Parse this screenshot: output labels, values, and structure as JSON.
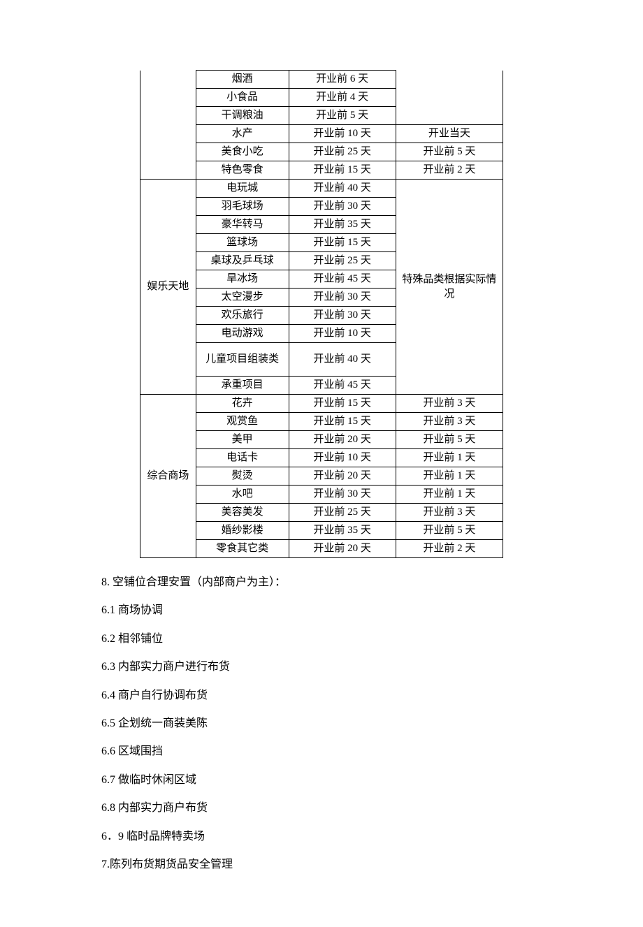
{
  "table": {
    "groups": [
      {
        "label": "",
        "openTop": true,
        "rows": [
          {
            "c2": "烟酒",
            "c3": "开业前 6 天",
            "c4": ""
          },
          {
            "c2": "小食品",
            "c3": "开业前 4 天",
            "c4": ""
          },
          {
            "c2": "干调粮油",
            "c3": "开业前 5 天",
            "c4": ""
          },
          {
            "c2": "水产",
            "c3": "开业前 10 天",
            "c4": "开业当天"
          },
          {
            "c2": "美食小吃",
            "c3": "开业前 25 天",
            "c4": "开业前 5 天"
          },
          {
            "c2": "特色零食",
            "c3": "开业前 15 天",
            "c4": "开业前 2 天"
          }
        ],
        "c4Span": {
          "start": 0,
          "len": 3,
          "text": "",
          "openTop": true
        }
      },
      {
        "label": "娱乐天地",
        "rows": [
          {
            "c2": "电玩城",
            "c3": "开业前 40 天"
          },
          {
            "c2": "羽毛球场",
            "c3": "开业前 30 天"
          },
          {
            "c2": "豪华转马",
            "c3": "开业前 35 天"
          },
          {
            "c2": "篮球场",
            "c3": "开业前 15 天"
          },
          {
            "c2": "桌球及乒乓球",
            "c3": "开业前 25 天"
          },
          {
            "c2": "旱冰场",
            "c3": "开业前 45 天"
          },
          {
            "c2": "太空漫步",
            "c3": "开业前 30 天"
          },
          {
            "c2": "欢乐旅行",
            "c3": "开业前 30 天"
          },
          {
            "c2": "电动游戏",
            "c3": "开业前 10 天"
          },
          {
            "c2": "儿童项目组装类",
            "c3": "开业前 40 天",
            "tall": true
          },
          {
            "c2": "承重项目",
            "c3": "开业前 45 天"
          }
        ],
        "c4Span": {
          "start": 0,
          "len": 11,
          "text": "特殊品类根据实际情况"
        }
      },
      {
        "label": "综合商场",
        "rows": [
          {
            "c2": "花卉",
            "c3": "开业前 15 天",
            "c4": "开业前 3 天"
          },
          {
            "c2": "观赏鱼",
            "c3": "开业前 15 天",
            "c4": "开业前 3 天"
          },
          {
            "c2": "美甲",
            "c3": "开业前 20 天",
            "c4": "开业前 5 天"
          },
          {
            "c2": "电话卡",
            "c3": "开业前 10 天",
            "c4": "开业前 1 天"
          },
          {
            "c2": "熨烫",
            "c3": "开业前 20 天",
            "c4": "开业前 1 天"
          },
          {
            "c2": "水吧",
            "c3": "开业前 30 天",
            "c4": "开业前 1 天"
          },
          {
            "c2": "美容美发",
            "c3": "开业前 25 天",
            "c4": "开业前 3 天"
          },
          {
            "c2": "婚纱影楼",
            "c3": "开业前 35 天",
            "c4": "开业前 5 天"
          },
          {
            "c2": "零食其它类",
            "c3": "开业前 20 天",
            "c4": "开业前 2 天"
          }
        ]
      }
    ]
  },
  "paragraphs": [
    "8.  空铺位合理安置（内部商户为主）：",
    "6.1 商场协调",
    "6.2 相邻铺位",
    "6.3 内部实力商户进行布货",
    "6.4 商户自行协调布货",
    "6.5 企划统一商装美陈",
    "6.6 区域围挡",
    "6.7 做临时休闲区域",
    "6.8 内部实力商户布货",
    "6．9 临时品牌特卖场",
    "7.陈列布货期货品安全管理"
  ]
}
